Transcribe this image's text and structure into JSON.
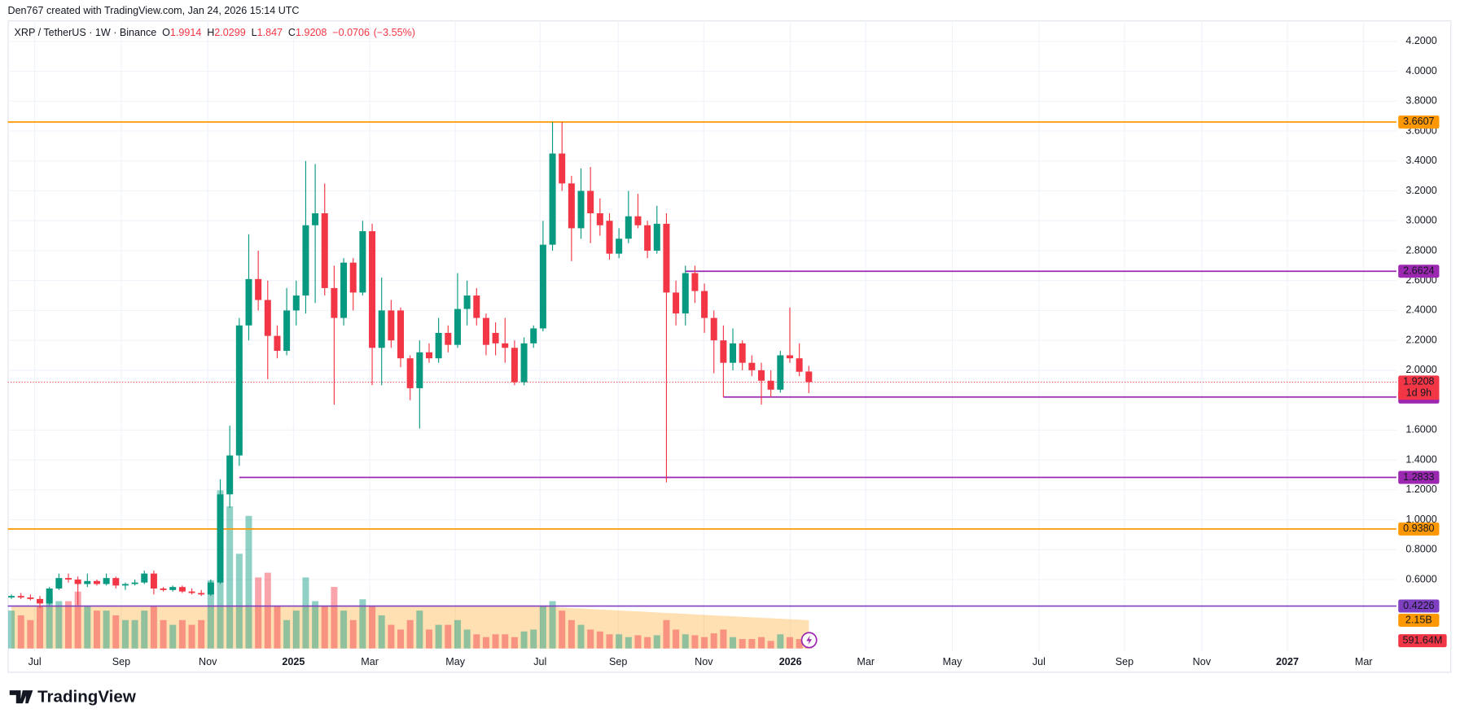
{
  "header": {
    "credit": "Den767 created with TradingView.com, Jan 24, 2026 15:14 UTC"
  },
  "chart_data": {
    "type": "candlestick",
    "symbol": "XRP / TetherUS · 1W · Binance",
    "ohlc_prefixes": [
      "O",
      "H",
      "L",
      "C"
    ],
    "change": {
      "value": -0.0706,
      "label": "−0.0706"
    },
    "change_pct": {
      "value": -3.55,
      "label": "(−3.55%)"
    },
    "colors": {
      "up": "#089981",
      "down": "#f23645",
      "volume_ma": "#ff9800"
    },
    "grid": true,
    "xlim": [
      -0.39,
      145.9
    ],
    "xticks": [
      {
        "value": 2.45,
        "label": "Jul"
      },
      {
        "value": 11.57,
        "label": "Sep"
      },
      {
        "value": 20.69,
        "label": "Nov"
      },
      {
        "value": 29.71,
        "label": "2025"
      },
      {
        "value": 37.75,
        "label": "Mar"
      },
      {
        "value": 46.76,
        "label": "May"
      },
      {
        "value": 55.69,
        "label": "Jul"
      },
      {
        "value": 63.92,
        "label": "Sep"
      },
      {
        "value": 72.94,
        "label": "Nov"
      },
      {
        "value": 82.06,
        "label": "2026"
      },
      {
        "value": 90,
        "label": "Mar"
      },
      {
        "value": 99.12,
        "label": "May"
      },
      {
        "value": 108.24,
        "label": "Jul"
      },
      {
        "value": 117.25,
        "label": "Sep"
      },
      {
        "value": 125.39,
        "label": "Nov"
      },
      {
        "value": 134.41,
        "label": "2027"
      },
      {
        "value": 142.45,
        "label": "Mar"
      }
    ],
    "ylim": [
      0.12,
      4.34
    ],
    "yticks": [
      {
        "value": 0.6,
        "label": "0.6000"
      },
      {
        "value": 0.8,
        "label": "0.8000"
      },
      {
        "value": 1,
        "label": "1.0000"
      },
      {
        "value": 1.2,
        "label": "1.2000"
      },
      {
        "value": 1.4,
        "label": "1.4000"
      },
      {
        "value": 1.6,
        "label": "1.6000"
      },
      {
        "value": 2,
        "label": "2.0000"
      },
      {
        "value": 2.2,
        "label": "2.2000"
      },
      {
        "value": 2.4,
        "label": "2.4000"
      },
      {
        "value": 2.6,
        "label": "2.6000"
      },
      {
        "value": 2.8,
        "label": "2.8000"
      },
      {
        "value": 3,
        "label": "3.0000"
      },
      {
        "value": 3.2,
        "label": "3.2000"
      },
      {
        "value": 3.4,
        "label": "3.4000"
      },
      {
        "value": 3.6,
        "label": "3.6000"
      },
      {
        "value": 3.8,
        "label": "3.8000"
      },
      {
        "value": 4,
        "label": "4.0000"
      },
      {
        "value": 4.2,
        "label": "4.2000"
      }
    ],
    "ohlc": [
      [
        0.48,
        0.5,
        0.47,
        0.49
      ],
      [
        0.49,
        0.51,
        0.47,
        0.48
      ],
      [
        0.48,
        0.5,
        0.46,
        0.47
      ],
      [
        0.47,
        0.49,
        0.41,
        0.44
      ],
      [
        0.44,
        0.55,
        0.43,
        0.54
      ],
      [
        0.54,
        0.64,
        0.53,
        0.61
      ],
      [
        0.61,
        0.64,
        0.58,
        0.6
      ],
      [
        0.6,
        0.62,
        0.43,
        0.57
      ],
      [
        0.57,
        0.64,
        0.55,
        0.59
      ],
      [
        0.59,
        0.6,
        0.56,
        0.57
      ],
      [
        0.57,
        0.64,
        0.56,
        0.61
      ],
      [
        0.61,
        0.62,
        0.54,
        0.56
      ],
      [
        0.56,
        0.58,
        0.53,
        0.57
      ],
      [
        0.57,
        0.6,
        0.56,
        0.58
      ],
      [
        0.58,
        0.66,
        0.57,
        0.64
      ],
      [
        0.64,
        0.66,
        0.5,
        0.54
      ],
      [
        0.54,
        0.55,
        0.52,
        0.53
      ],
      [
        0.53,
        0.56,
        0.52,
        0.55
      ],
      [
        0.55,
        0.56,
        0.51,
        0.52
      ],
      [
        0.52,
        0.54,
        0.5,
        0.51
      ],
      [
        0.51,
        0.53,
        0.49,
        0.5
      ],
      [
        0.5,
        0.6,
        0.49,
        0.58
      ],
      [
        0.58,
        1.27,
        0.57,
        1.17
      ],
      [
        1.17,
        1.63,
        1.08,
        1.43
      ],
      [
        1.43,
        2.35,
        1.36,
        2.3
      ],
      [
        2.3,
        2.91,
        2.2,
        2.61
      ],
      [
        2.61,
        2.8,
        2.4,
        2.47
      ],
      [
        2.47,
        2.6,
        1.94,
        2.23
      ],
      [
        2.23,
        2.3,
        2.08,
        2.13
      ],
      [
        2.13,
        2.55,
        2.1,
        2.4
      ],
      [
        2.4,
        2.6,
        2.3,
        2.5
      ],
      [
        2.5,
        3.4,
        2.38,
        2.97
      ],
      [
        2.97,
        3.38,
        2.45,
        3.05
      ],
      [
        3.05,
        3.25,
        2.5,
        2.55
      ],
      [
        2.55,
        2.7,
        1.77,
        2.35
      ],
      [
        2.35,
        2.75,
        2.3,
        2.72
      ],
      [
        2.72,
        2.75,
        2.4,
        2.52
      ],
      [
        2.52,
        3.0,
        2.5,
        2.93
      ],
      [
        2.93,
        2.98,
        1.9,
        2.15
      ],
      [
        2.15,
        2.62,
        1.9,
        2.4
      ],
      [
        2.4,
        2.47,
        2.15,
        2.2
      ],
      [
        2.4,
        2.42,
        2.02,
        2.08
      ],
      [
        2.08,
        2.1,
        1.8,
        1.88
      ],
      [
        1.88,
        2.2,
        1.61,
        2.12
      ],
      [
        2.12,
        2.18,
        2.05,
        2.08
      ],
      [
        2.08,
        2.35,
        2.05,
        2.25
      ],
      [
        2.25,
        2.3,
        2.12,
        2.17
      ],
      [
        2.17,
        2.65,
        2.15,
        2.41
      ],
      [
        2.41,
        2.6,
        2.3,
        2.5
      ],
      [
        2.5,
        2.55,
        2.3,
        2.35
      ],
      [
        2.35,
        2.38,
        2.1,
        2.17
      ],
      [
        2.25,
        2.32,
        2.1,
        2.18
      ],
      [
        2.18,
        2.35,
        2.05,
        2.15
      ],
      [
        2.15,
        2.2,
        1.9,
        1.92
      ],
      [
        1.92,
        2.22,
        1.9,
        2.18
      ],
      [
        2.18,
        2.3,
        2.15,
        2.28
      ],
      [
        2.28,
        3.0,
        2.26,
        2.84
      ],
      [
        2.84,
        3.66,
        2.8,
        3.45
      ],
      [
        3.45,
        3.66,
        3.2,
        3.25
      ],
      [
        3.25,
        3.3,
        2.73,
        2.95
      ],
      [
        2.95,
        3.35,
        2.88,
        3.2
      ],
      [
        3.2,
        3.36,
        2.85,
        3.05
      ],
      [
        3.05,
        3.15,
        2.9,
        2.97
      ],
      [
        3.0,
        3.05,
        2.74,
        2.78
      ],
      [
        2.78,
        2.95,
        2.75,
        2.88
      ],
      [
        2.88,
        3.2,
        2.85,
        3.03
      ],
      [
        3.03,
        3.18,
        2.95,
        2.97
      ],
      [
        2.97,
        3.0,
        2.75,
        2.8
      ],
      [
        2.8,
        3.1,
        2.78,
        2.98
      ],
      [
        2.98,
        3.05,
        1.25,
        2.52
      ],
      [
        2.52,
        2.6,
        2.3,
        2.38
      ],
      [
        2.38,
        2.7,
        2.3,
        2.65
      ],
      [
        2.65,
        2.7,
        2.45,
        2.53
      ],
      [
        2.53,
        2.58,
        2.25,
        2.35
      ],
      [
        2.35,
        2.4,
        1.98,
        2.2
      ],
      [
        2.2,
        2.3,
        1.82,
        2.05
      ],
      [
        2.05,
        2.28,
        2.0,
        2.18
      ],
      [
        2.18,
        2.2,
        2.0,
        2.05
      ],
      [
        2.05,
        2.1,
        1.96,
        2.0
      ],
      [
        2.0,
        2.05,
        1.77,
        1.93
      ],
      [
        1.93,
        2.0,
        1.82,
        1.87
      ],
      [
        1.87,
        2.13,
        1.85,
        2.1
      ],
      [
        2.1,
        2.42,
        2.05,
        2.08
      ],
      [
        2.08,
        2.18,
        1.96,
        1.99
      ],
      [
        1.9914,
        2.0299,
        1.847,
        1.9208
      ]
    ],
    "volume": [
      2880000000.0,
      2520000000.0,
      2160000000.0,
      3240000000.0,
      3960000000.0,
      3600000000.0,
      3600000000.0,
      4320000000.0,
      3240000000.0,
      2880000000.0,
      2880000000.0,
      2520000000.0,
      2160000000.0,
      2160000000.0,
      2880000000.0,
      3240000000.0,
      2160000000.0,
      1800000000.0,
      2160000000.0,
      1800000000.0,
      2160000000.0,
      5180000000.0,
      12020000000.0,
      10800000000.0,
      7200000000.0,
      10080000000.0,
      5400000000.0,
      5760000000.0,
      3240000000.0,
      2160000000.0,
      2880000000.0,
      5400000000.0,
      3600000000.0,
      3240000000.0,
      4680000000.0,
      2880000000.0,
      2160000000.0,
      3740000000.0,
      3240000000.0,
      2520000000.0,
      1800000000.0,
      1440000000.0,
      2160000000.0,
      2880000000.0,
      1440000000.0,
      1800000000.0,
      1800000000.0,
      2160000000.0,
      1440000000.0,
      1080000000.0,
      864000000.0,
      1080000000.0,
      1080000000.0,
      864000000.0,
      1296000000.0,
      1440000000.0,
      3240000000.0,
      3600000000.0,
      2880000000.0,
      2160000000.0,
      1800000000.0,
      1440000000.0,
      1296000000.0,
      1080000000.0,
      1080000000.0,
      864000000.0,
      1008000000.0,
      864000000.0,
      1008000000.0,
      2160000000.0,
      1440000000.0,
      1080000000.0,
      1008000000.0,
      864000000.0,
      1152000000.0,
      1440000000.0,
      864000000.0,
      720000000.0,
      720000000.0,
      864000000.0,
      576000000.0,
      1080000000.0,
      864000000.0,
      720000000.0,
      591640000
    ],
    "volume_label": "591.64M",
    "volume_ma": [
      3180000000.0,
      3180000000.0,
      3180000000.0,
      3180000000.0,
      3180000000.0,
      3180000000.0,
      3180000000.0,
      3180000000.0,
      3180000000.0,
      3180000000.0,
      3180000000.0,
      3180000000.0,
      3180000000.0,
      3180000000.0,
      3180000000.0,
      3180000000.0,
      3180000000.0,
      3180000000.0,
      3180000000.0,
      3180000000.0,
      3180000000.0,
      3180000000.0,
      3180000000.0,
      3180000000.0,
      3180000000.0,
      3180000000.0,
      3180000000.0,
      3180000000.0,
      3180000000.0,
      3180000000.0,
      3180000000.0,
      3180000000.0,
      3180000000.0,
      3180000000.0,
      3180000000.0,
      3180000000.0,
      3180000000.0,
      3180000000.0,
      3180000000.0,
      3180000000.0,
      3180000000.0,
      3180000000.0,
      3180000000.0,
      3180000000.0,
      3180000000.0,
      3180000000.0,
      3180000000.0,
      3180000000.0,
      3180000000.0,
      3180000000.0,
      3180000000.0,
      3180000000.0,
      3180000000.0,
      3180000000.0,
      3180000000.0,
      3180000000.0,
      3180000000.0,
      3150000000.0,
      3110000000.0,
      3070000000.0,
      3040000000.0,
      3000000000.0,
      2960000000.0,
      2930000000.0,
      2890000000.0,
      2850000000.0,
      2820000000.0,
      2780000000.0,
      2740000000.0,
      2700000000.0,
      2670000000.0,
      2630000000.0,
      2590000000.0,
      2560000000.0,
      2520000000.0,
      2480000000.0,
      2450000000.0,
      2410000000.0,
      2370000000.0,
      2330000000.0,
      2300000000.0,
      2260000000.0,
      2220000000.0,
      2190000000.0,
      2150000000.0
    ],
    "volume_ma_label": "2.15B",
    "last_price_countdown": "1d 9h",
    "levels": [
      {
        "value": 3.6607,
        "color": "#ff9800",
        "x_from": -0.39
      },
      {
        "value": 2.6624,
        "color": "#9c27b0",
        "x_from": 71
      },
      {
        "value": 1.8209,
        "color": "#9c27b0",
        "x_from": 75
      },
      {
        "value": 1.2833,
        "color": "#9c27b0",
        "x_from": 24
      },
      {
        "value": 0.938,
        "label": "0.9380",
        "color": "#ff9800",
        "x_from": -0.39
      },
      {
        "value": 0.4226,
        "color": "#7e3fc0",
        "x_from": -0.39
      }
    ]
  },
  "footer": {
    "logo": "TradingView"
  }
}
